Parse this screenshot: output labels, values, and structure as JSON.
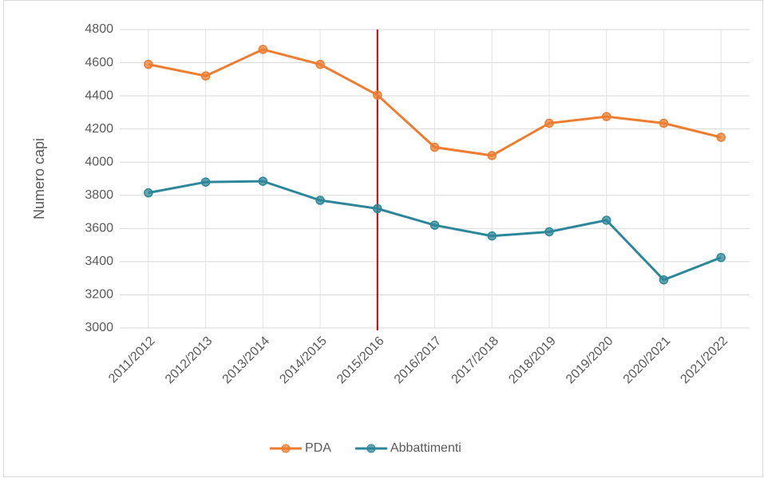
{
  "chart_data": {
    "type": "line",
    "y_label": "Numero capi",
    "categories": [
      "2011/2012",
      "2012/2013",
      "2013/2014",
      "2014/2015",
      "2015/2016",
      "2016/2017",
      "2017/2018",
      "2018/2019",
      "2019/2020",
      "2020/2021",
      "2021/2022"
    ],
    "series": [
      {
        "name": "PDA",
        "color": "#ed7d31",
        "values": [
          4590,
          4520,
          4680,
          4590,
          4405,
          4090,
          4040,
          4235,
          4275,
          4235,
          4150
        ]
      },
      {
        "name": "Abbattimenti",
        "color": "#2e8799",
        "values": [
          3815,
          3880,
          3885,
          3770,
          3720,
          3620,
          3555,
          3580,
          3650,
          3290,
          3425
        ]
      }
    ],
    "ylim": [
      3000,
      4800
    ],
    "yticks": [
      3000,
      3200,
      3400,
      3600,
      3800,
      4000,
      4200,
      4400,
      4600,
      4800
    ],
    "grid": true,
    "legend": "bottom",
    "vline_at": "2015/2016",
    "vline_color": "#c00000"
  }
}
